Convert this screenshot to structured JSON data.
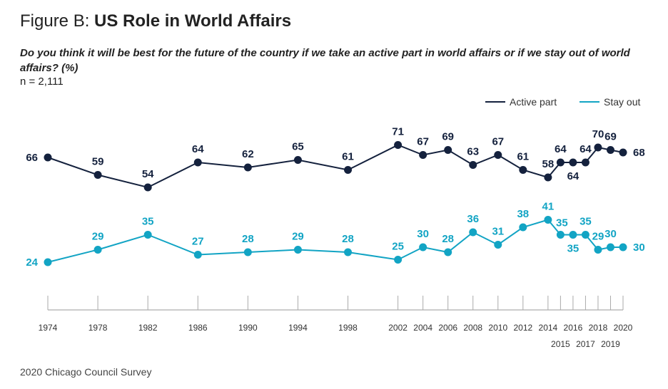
{
  "title_prefix": "Figure B: ",
  "title_main": "US Role in World Affairs",
  "question": "Do you think it will be best for the future of the country if we take an active part in world affairs or if we stay out of world affairs? (%)",
  "n": "n = 2,111",
  "source": "2020 Chicago Council Survey",
  "chart_data": {
    "type": "line",
    "x": [
      1974,
      1978,
      1982,
      1986,
      1990,
      1994,
      1998,
      2002,
      2004,
      2006,
      2008,
      2010,
      2012,
      2014,
      2015,
      2016,
      2017,
      2018,
      2019,
      2020
    ],
    "series": [
      {
        "name": "Active part",
        "color": "#14213d",
        "values": [
          66,
          59,
          54,
          64,
          62,
          65,
          61,
          71,
          67,
          69,
          63,
          67,
          61,
          58,
          64,
          64,
          64,
          70,
          69,
          68
        ]
      },
      {
        "name": "Stay out",
        "color": "#12a4c4",
        "values": [
          24,
          29,
          35,
          27,
          28,
          29,
          28,
          25,
          30,
          28,
          36,
          31,
          38,
          41,
          35,
          35,
          35,
          29,
          30,
          30
        ]
      }
    ],
    "legend": "top-right",
    "grid": false,
    "xlim": [
      1974,
      2020
    ]
  }
}
